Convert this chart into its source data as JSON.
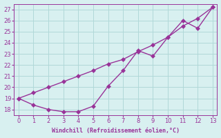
{
  "xlabel": "Windchill (Refroidissement éolien,°C)",
  "x": [
    0,
    1,
    2,
    3,
    4,
    5,
    6,
    7,
    8,
    9,
    10,
    11,
    12,
    13
  ],
  "line1_y": [
    19.0,
    19.5,
    20.0,
    20.5,
    21.0,
    21.5,
    22.1,
    22.5,
    23.2,
    23.8,
    24.5,
    25.5,
    26.2,
    27.2
  ],
  "line2_y": [
    19.0,
    18.4,
    18.0,
    17.8,
    17.8,
    18.3,
    20.1,
    21.5,
    23.3,
    22.8,
    24.5,
    26.0,
    25.3,
    27.2
  ],
  "line_color": "#993399",
  "bg_color": "#d8f0f0",
  "grid_color": "#b0d8d8",
  "ylim_min": 17.5,
  "ylim_max": 27.5,
  "xlim_min": -0.3,
  "xlim_max": 13.3,
  "yticks": [
    18,
    19,
    20,
    21,
    22,
    23,
    24,
    25,
    26,
    27
  ],
  "xticks": [
    0,
    1,
    2,
    3,
    4,
    5,
    6,
    7,
    8,
    9,
    10,
    11,
    12,
    13
  ],
  "marker_size": 3,
  "line_width": 1.0,
  "tick_labelsize": 6,
  "xlabel_fontsize": 6
}
